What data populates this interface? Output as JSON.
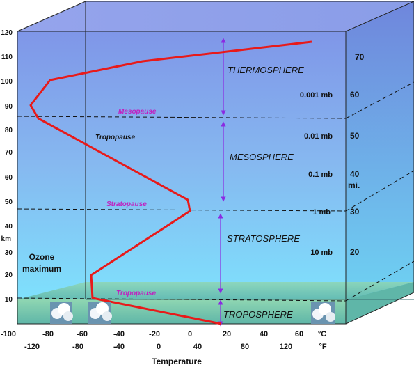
{
  "colors": {
    "temperature_curve": "#e81a1a",
    "arrows": "#8a2be2",
    "pause_labels": "#c020c0",
    "sky_top": "#7f96e8",
    "sky_bottom": "#7de8ff",
    "ground": "#7fcfb0"
  },
  "left_axis": {
    "ticks": [
      "120",
      "110",
      "100",
      "90",
      "80",
      "70",
      "60",
      "50",
      "40",
      "30",
      "20",
      "10"
    ],
    "unit": "km"
  },
  "right_axis": {
    "mile_ticks": [
      "70",
      "60",
      "50",
      "40",
      "30",
      "20"
    ],
    "unit": "mi."
  },
  "pressure_labels": [
    "0.001 mb",
    "0.01 mb",
    "0.1 mb",
    "1 mb",
    "10 mb"
  ],
  "layers": {
    "thermosphere": "THERMOSPHERE",
    "mesosphere": "MESOSPHERE",
    "stratosphere": "STRATOSPHERE",
    "troposphere": "TROPOSPHERE"
  },
  "boundaries": {
    "mesopause": "Mesopause",
    "stratopause": "Stratopause",
    "tropopause_back": "Tropopause",
    "tropopause_front": "Tropopause"
  },
  "ozone": {
    "line1": "Ozone",
    "line2": "maximum"
  },
  "bottom_axis": {
    "celsius": [
      "-100",
      "-80",
      "-60",
      "-40",
      "-20",
      "0",
      "20",
      "40",
      "60"
    ],
    "celsius_unit": "°C",
    "fahrenheit": [
      "-120",
      "-80",
      "-40",
      "0",
      "40",
      "80",
      "120"
    ],
    "fahrenheit_unit": "°F",
    "title": "Temperature"
  },
  "icons": [
    "cloud-icon",
    "cloud-icon",
    "cloud-icon"
  ]
}
